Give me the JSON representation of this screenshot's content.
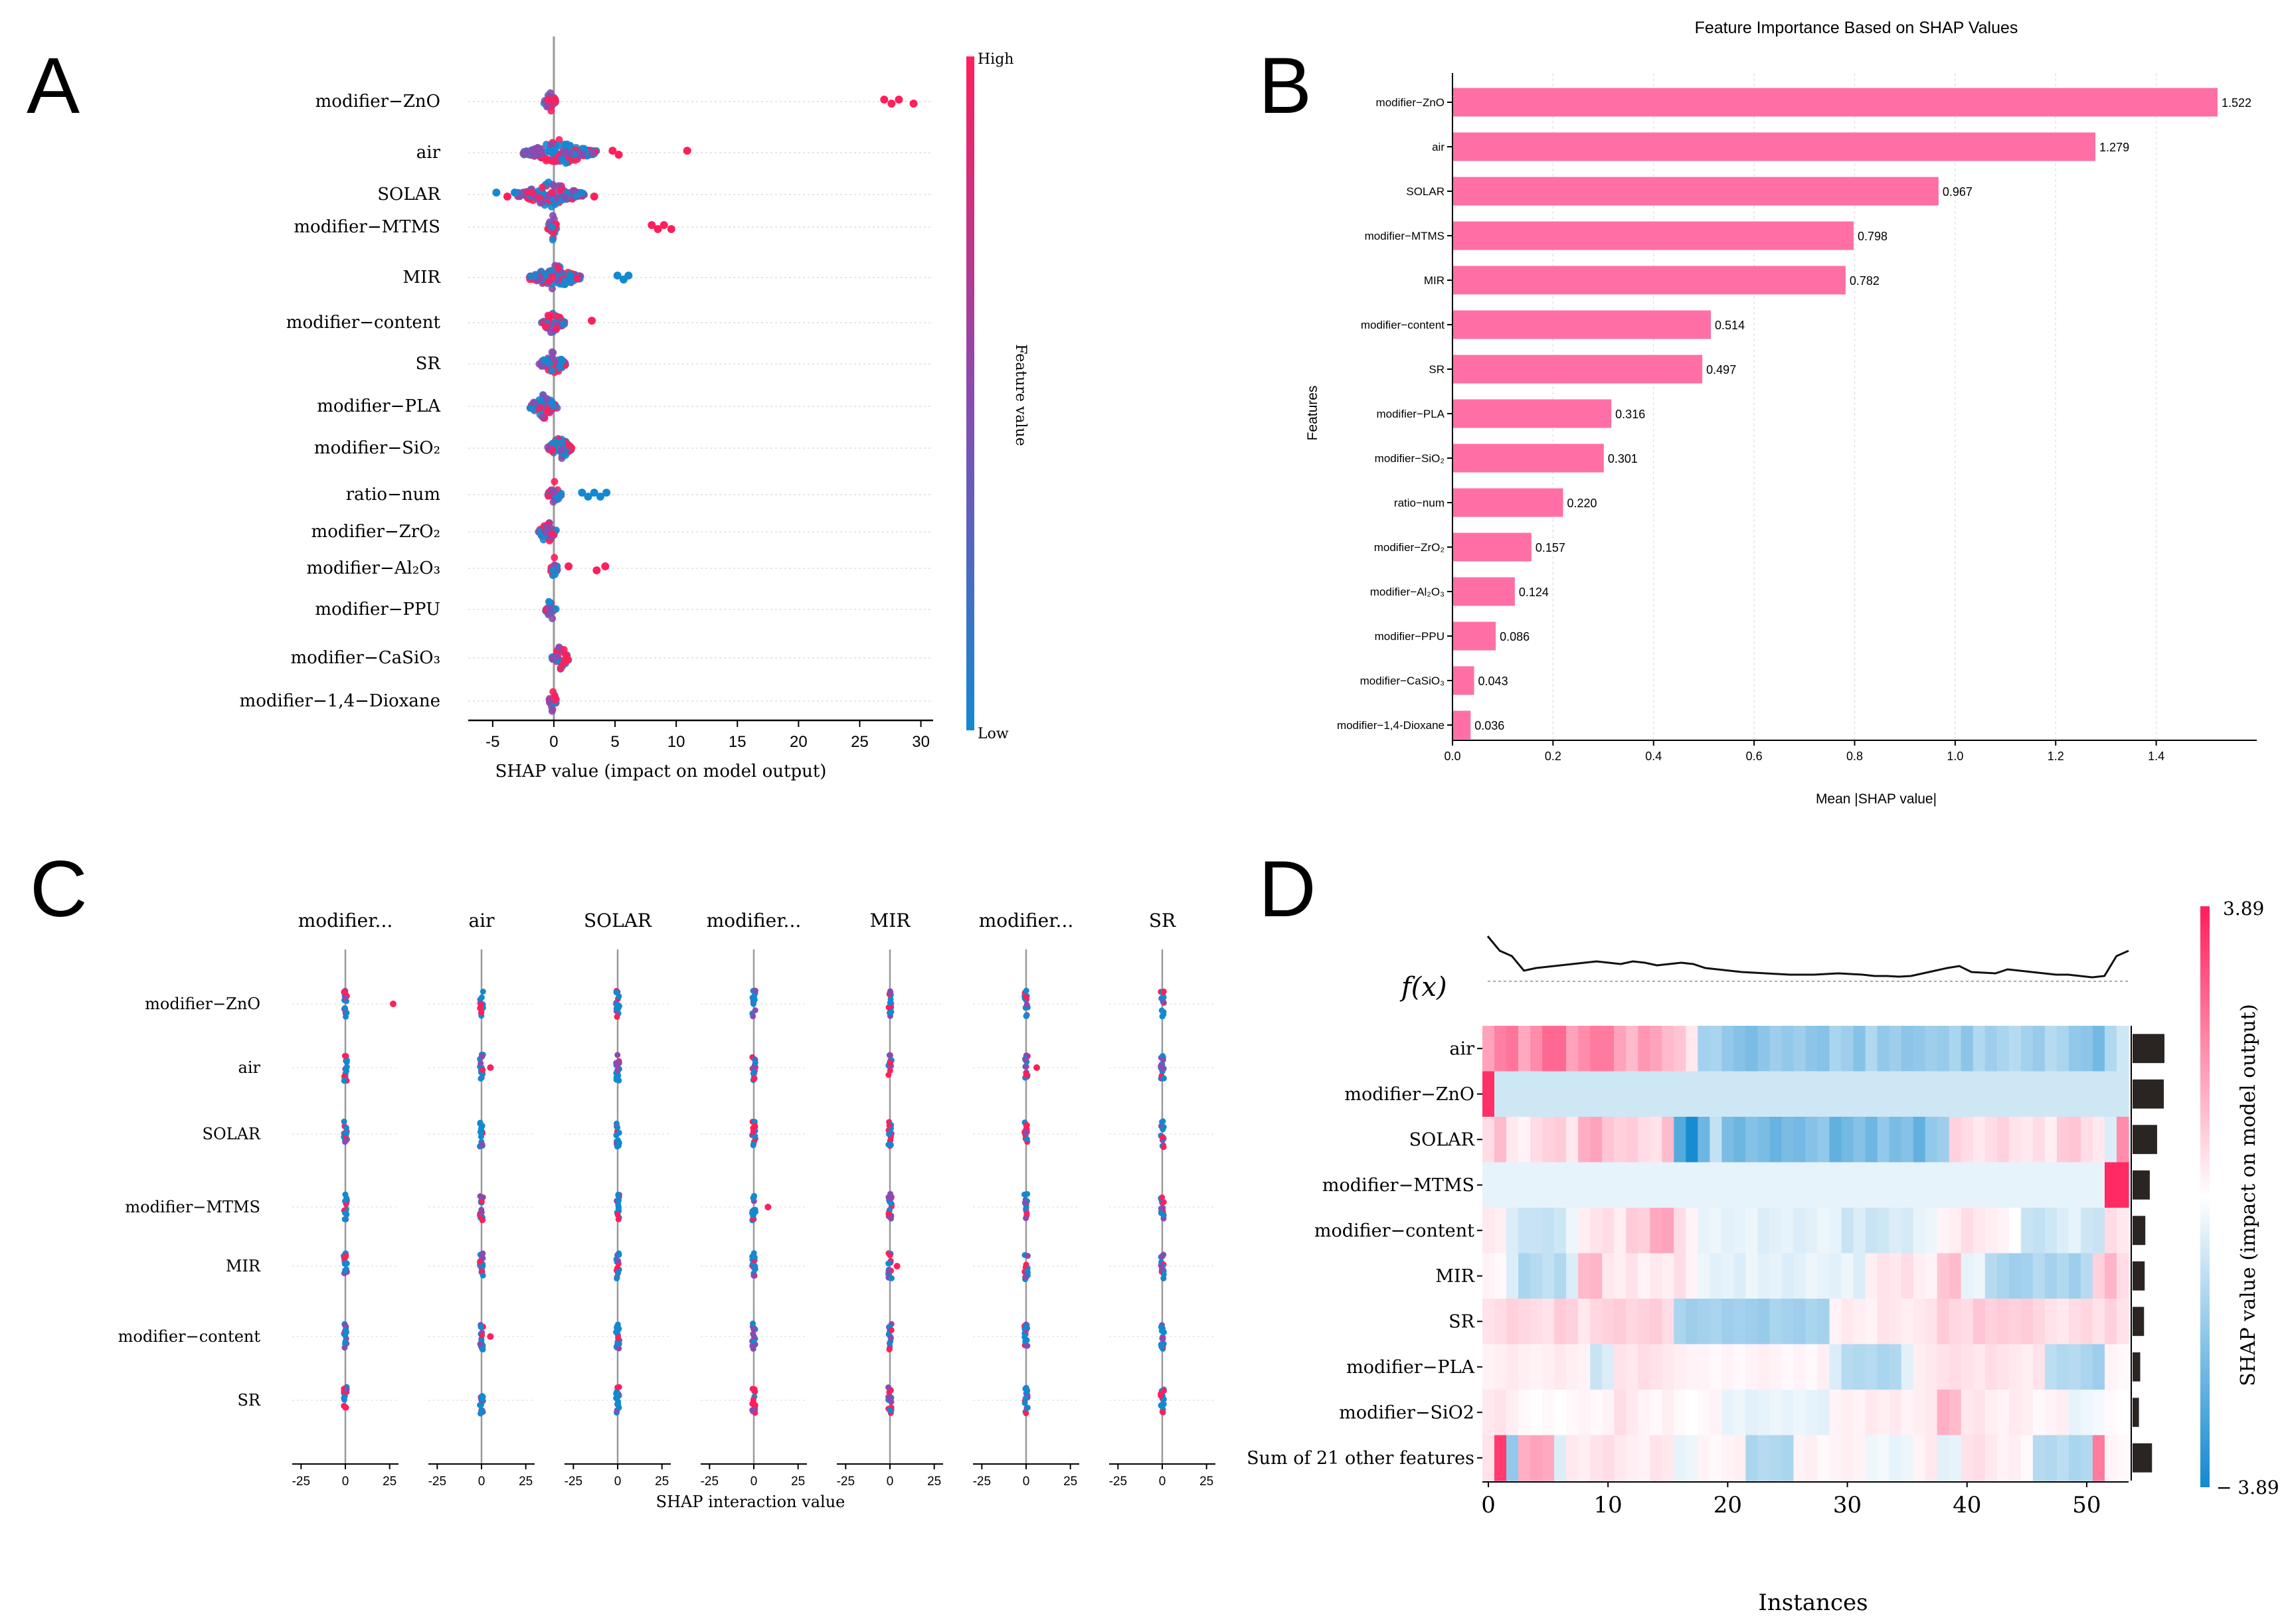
{
  "panel_labels": [
    "A",
    "B",
    "C",
    "D"
  ],
  "colors": {
    "high": "#ff1f5b",
    "low": "#1389d0",
    "mid": "#8a4bb0",
    "bar": "#ff6fa6",
    "dark": "#2a2522"
  },
  "chart_data": [
    {
      "panel": "A",
      "type": "scatter",
      "subtype": "shap-beeswarm",
      "xlabel": "SHAP value (impact on model output)",
      "xlim": [
        -7,
        31
      ],
      "xticks": [
        -5,
        0,
        5,
        10,
        15,
        20,
        25,
        30
      ],
      "features": [
        "modifier−ZnO",
        "air",
        "SOLAR",
        "modifier−MTMS",
        "MIR",
        "modifier−content",
        "SR",
        "modifier−PLA",
        "modifier−SiO₂",
        "ratio−num",
        "modifier−ZrO₂",
        "modifier−Al₂O₃",
        "modifier−PPU",
        "modifier−CaSiO₃",
        "modifier−1,4−Dioxane"
      ],
      "ranges": [
        [
          -0.8,
          0.2
        ],
        [
          -2.5,
          3.5
        ],
        [
          -3,
          2.5
        ],
        [
          -0.5,
          0.3
        ],
        [
          -2,
          2.2
        ],
        [
          -1,
          0.9
        ],
        [
          -1.2,
          1
        ],
        [
          -2,
          0.3
        ],
        [
          -0.5,
          1.5
        ],
        [
          -0.5,
          0.6
        ],
        [
          -1.3,
          0.2
        ],
        [
          -0.3,
          0.3
        ],
        [
          -0.7,
          0.2
        ],
        [
          -0.2,
          1.3
        ],
        [
          -0.4,
          0.2
        ]
      ],
      "outliers": [
        {
          "feature": 0,
          "x": [
            27,
            27.6,
            28.2,
            29.4
          ],
          "color": "high"
        },
        {
          "feature": 1,
          "x": [
            4.8,
            5.3,
            10.9
          ],
          "color": "high"
        },
        {
          "feature": 2,
          "x": [
            -4.7,
            -3.8,
            -3.2,
            3.3
          ],
          "color": "mixed"
        },
        {
          "feature": 3,
          "x": [
            8.0,
            8.5,
            9.0,
            9.6
          ],
          "color": "high"
        },
        {
          "feature": 4,
          "x": [
            5.2,
            5.7,
            6.1
          ],
          "color": "low"
        },
        {
          "feature": 5,
          "x": [
            3.1
          ],
          "color": "high"
        },
        {
          "feature": 9,
          "x": [
            2.3,
            2.8,
            3.3,
            3.8,
            4.3
          ],
          "color": "low"
        },
        {
          "feature": 11,
          "x": [
            1.2,
            3.5,
            4.2
          ],
          "color": "high"
        }
      ],
      "colorbar": {
        "label": "Feature value",
        "high": "High",
        "low": "Low"
      }
    },
    {
      "panel": "B",
      "type": "bar",
      "orientation": "horizontal",
      "title": "Feature Importance Based on SHAP Values",
      "xlabel": "Mean |SHAP value|",
      "ylabel": "Features",
      "xlim": [
        0,
        1.6
      ],
      "xticks": [
        0.0,
        0.2,
        0.4,
        0.6,
        0.8,
        1.0,
        1.2,
        1.4
      ],
      "tick_labels": [
        "0.0",
        "0.2",
        "0.4",
        "0.6",
        "0.8",
        "1.0",
        "1.2",
        "1.4"
      ],
      "categories": [
        "modifier−ZnO",
        "air",
        "SOLAR",
        "modifier−MTMS",
        "MIR",
        "modifier−content",
        "SR",
        "modifier−PLA",
        "modifier−SiO₂",
        "ratio−num",
        "modifier−ZrO₂",
        "modifier−Al₂O₃",
        "modifier−PPU",
        "modifier−CaSiO₃",
        "modifier−1,4-Dioxane"
      ],
      "values": [
        1.522,
        1.279,
        0.967,
        0.798,
        0.782,
        0.514,
        0.497,
        0.316,
        0.301,
        0.22,
        0.157,
        0.124,
        0.086,
        0.043,
        0.036
      ],
      "value_labels": [
        "1.522",
        "1.279",
        "0.967",
        "0.798",
        "0.782",
        "0.514",
        "0.497",
        "0.316",
        "0.301",
        "0.220",
        "0.157",
        "0.124",
        "0.086",
        "0.043",
        "0.036"
      ]
    },
    {
      "panel": "C",
      "type": "scatter",
      "subtype": "shap-interaction",
      "xlabel": "SHAP interaction value",
      "xlim": [
        -30,
        30
      ],
      "xticks": [
        -25,
        0,
        25
      ],
      "columns": [
        "modifier...",
        "air",
        "SOLAR",
        "modifier...",
        "MIR",
        "modifier...",
        "SR"
      ],
      "rows": [
        "modifier−ZnO",
        "air",
        "SOLAR",
        "modifier−MTMS",
        "MIR",
        "modifier−content",
        "SR"
      ],
      "outliers": [
        {
          "col": 0,
          "row": 0,
          "x": 27
        },
        {
          "col": 1,
          "row": 1,
          "x": 5
        },
        {
          "col": 1,
          "row": 5,
          "x": 5
        },
        {
          "col": 3,
          "row": 3,
          "x": 8
        },
        {
          "col": 4,
          "row": 4,
          "x": 4
        },
        {
          "col": 5,
          "row": 1,
          "x": 6
        }
      ]
    },
    {
      "panel": "D",
      "type": "heatmap",
      "subtype": "shap-heatmap",
      "xlabel": "Instances",
      "fx_label": "f(x)",
      "xlim": [
        0,
        54
      ],
      "xticks": [
        0,
        10,
        20,
        30,
        40,
        50
      ],
      "rows": [
        "air",
        "modifier−ZnO",
        "SOLAR",
        "modifier−MTMS",
        "modifier−content",
        "MIR",
        "SR",
        "modifier−PLA",
        "modifier−SiO2",
        "Sum of 21 other features"
      ],
      "row_importance": [
        1.0,
        0.98,
        0.77,
        0.54,
        0.4,
        0.38,
        0.36,
        0.24,
        0.2,
        0.61
      ],
      "colorbar": {
        "max": 3.89,
        "min": -3.89,
        "max_label": "3.89",
        "min_label": "− 3.89",
        "label": "SHAP value (impact on model output)"
      },
      "fx": [
        0.0,
        -0.22,
        -0.3,
        -0.52,
        -0.48,
        -0.46,
        -0.44,
        -0.42,
        -0.4,
        -0.38,
        -0.4,
        -0.42,
        -0.38,
        -0.4,
        -0.44,
        -0.42,
        -0.4,
        -0.42,
        -0.48,
        -0.5,
        -0.52,
        -0.54,
        -0.55,
        -0.56,
        -0.57,
        -0.58,
        -0.58,
        -0.58,
        -0.57,
        -0.56,
        -0.57,
        -0.58,
        -0.6,
        -0.6,
        -0.61,
        -0.6,
        -0.56,
        -0.52,
        -0.48,
        -0.45,
        -0.54,
        -0.55,
        -0.56,
        -0.5,
        -0.52,
        -0.54,
        -0.56,
        -0.58,
        -0.58,
        -0.6,
        -0.62,
        -0.6,
        -0.3,
        -0.22
      ],
      "values": [
        [
          1.6,
          2.2,
          2.4,
          1.5,
          2.0,
          2.6,
          2.6,
          1.6,
          2.0,
          2.3,
          2.3,
          1.6,
          1.2,
          1.8,
          1.6,
          1.2,
          1.0,
          0.4,
          -1.5,
          -1.4,
          -1.8,
          -2.0,
          -2.2,
          -1.9,
          -1.6,
          -1.8,
          -1.6,
          -1.9,
          -2.0,
          -1.4,
          -1.6,
          -2.0,
          -1.3,
          -1.8,
          -1.6,
          -1.9,
          -1.8,
          -1.6,
          -1.7,
          -1.4,
          -1.9,
          -1.3,
          -1.6,
          -1.4,
          -1.2,
          -1.5,
          -1.7,
          -1.2,
          -1.4,
          -1.8,
          -1.9,
          -2.3,
          -1.3,
          -0.8
        ],
        [
          3.6,
          -0.8,
          -0.8,
          -0.8,
          -0.8,
          -0.8,
          -0.8,
          -0.8,
          -0.8,
          -0.8,
          -0.8,
          -0.8,
          -0.8,
          -0.8,
          -0.8,
          -0.8,
          -0.8,
          -0.8,
          -0.8,
          -0.8,
          -0.8,
          -0.8,
          -0.8,
          -0.8,
          -0.8,
          -0.8,
          -0.8,
          -0.8,
          -0.8,
          -0.8,
          -0.8,
          -0.8,
          -0.8,
          -0.8,
          -0.8,
          -0.8,
          -0.8,
          -0.8,
          -0.8,
          -0.8,
          -0.8,
          -0.8,
          -0.8,
          -0.8,
          -0.8,
          -0.8,
          -0.8,
          -0.8,
          -0.8,
          -0.8,
          -0.8,
          -0.8,
          -0.8,
          -0.8
        ],
        [
          0.6,
          1.2,
          0.4,
          0.2,
          0.6,
          0.8,
          0.9,
          0.4,
          1.4,
          1.6,
          1.0,
          0.8,
          0.9,
          0.6,
          0.5,
          1.2,
          -2.8,
          -3.8,
          -2.4,
          -1.0,
          -2.2,
          -2.4,
          -2.0,
          -2.2,
          -2.5,
          -2.2,
          -2.3,
          -2.0,
          -1.8,
          -2.6,
          -2.3,
          -2.0,
          -2.4,
          -1.8,
          -2.2,
          -2.0,
          -2.6,
          -1.8,
          -1.6,
          0.8,
          0.6,
          0.4,
          0.6,
          0.8,
          0.5,
          0.4,
          0.6,
          0.3,
          0.9,
          1.0,
          0.6,
          0.4,
          -0.6,
          2.0
        ],
        [
          -0.4,
          -0.4,
          -0.4,
          -0.4,
          -0.4,
          -0.4,
          -0.4,
          -0.4,
          -0.4,
          -0.4,
          -0.4,
          -0.4,
          -0.4,
          -0.4,
          -0.4,
          -0.4,
          -0.4,
          -0.4,
          -0.4,
          -0.4,
          -0.4,
          -0.4,
          -0.4,
          -0.4,
          -0.4,
          -0.4,
          -0.4,
          -0.4,
          -0.4,
          -0.4,
          -0.4,
          -0.4,
          -0.4,
          -0.4,
          -0.4,
          -0.4,
          -0.4,
          -0.4,
          -0.4,
          -0.4,
          -0.4,
          -0.4,
          -0.4,
          -0.4,
          -0.4,
          -0.4,
          -0.4,
          -0.4,
          -0.4,
          -0.4,
          -0.4,
          -0.4,
          3.7,
          3.7
        ],
        [
          0.4,
          0.3,
          -0.6,
          -0.9,
          -0.9,
          -1.0,
          -0.8,
          -0.3,
          0.3,
          0.5,
          0.6,
          0.3,
          0.9,
          0.8,
          1.5,
          1.6,
          0.6,
          0.2,
          -0.4,
          -0.3,
          -0.5,
          -0.4,
          -0.3,
          -0.6,
          -0.5,
          -0.4,
          -0.6,
          -0.5,
          -0.3,
          -0.4,
          -0.9,
          -0.6,
          -0.9,
          -0.8,
          -0.6,
          -0.7,
          -0.4,
          -0.3,
          0.2,
          0.3,
          0.6,
          0.4,
          0.3,
          0.2,
          0.0,
          -0.9,
          -1.0,
          -0.8,
          -0.6,
          -0.4,
          -0.8,
          -0.9,
          0.6,
          0.4
        ],
        [
          0.2,
          0.1,
          -0.6,
          -1.4,
          -1.2,
          -1.0,
          -1.3,
          -0.6,
          1.2,
          1.3,
          0.4,
          0.3,
          0.5,
          0.2,
          0.4,
          0.3,
          0.6,
          0.2,
          -0.3,
          -0.5,
          -0.4,
          -0.6,
          -0.3,
          -0.5,
          -0.4,
          -0.6,
          -0.5,
          -0.3,
          -0.4,
          -0.5,
          -0.3,
          -0.6,
          0.3,
          0.5,
          0.4,
          0.6,
          0.3,
          0.2,
          1.0,
          1.2,
          -0.4,
          -0.3,
          -1.2,
          -1.4,
          -1.6,
          -1.5,
          -1.2,
          -1.5,
          -1.3,
          -1.6,
          -1.2,
          0.8,
          1.3,
          0.6
        ],
        [
          0.5,
          0.6,
          0.8,
          0.7,
          0.6,
          0.5,
          0.9,
          0.8,
          0.4,
          0.7,
          0.8,
          0.9,
          0.7,
          0.8,
          0.9,
          0.6,
          -1.4,
          -1.6,
          -1.5,
          -1.4,
          -1.6,
          -1.5,
          -1.6,
          -1.7,
          -1.4,
          -1.5,
          -1.6,
          -1.4,
          -1.5,
          0.2,
          0.4,
          0.3,
          0.2,
          0.5,
          0.4,
          0.3,
          0.4,
          0.5,
          0.9,
          0.7,
          0.6,
          1.0,
          0.8,
          0.9,
          0.8,
          0.9,
          0.7,
          0.5,
          0.4,
          0.6,
          0.7,
          0.5,
          0.8,
          0.5
        ],
        [
          0.2,
          0.3,
          0.4,
          0.3,
          0.2,
          0.3,
          0.4,
          0.3,
          0.2,
          -0.9,
          -0.6,
          0.5,
          0.4,
          0.6,
          0.5,
          0.4,
          0.3,
          0.2,
          0.2,
          0.1,
          0.2,
          0.1,
          0.2,
          0.3,
          0.2,
          0.1,
          0.2,
          0.1,
          0.3,
          -0.6,
          -1.2,
          -1.3,
          -1.2,
          -1.4,
          -1.3,
          -0.5,
          0.3,
          0.4,
          0.5,
          0.6,
          0.5,
          0.4,
          0.6,
          0.5,
          0.4,
          0.3,
          0.5,
          -1.1,
          -1.3,
          -1.2,
          -1.4,
          -1.6,
          0.2,
          0.1
        ],
        [
          0.4,
          0.5,
          0.3,
          0.1,
          0.0,
          0.1,
          0.0,
          0.1,
          0.2,
          0.1,
          0.2,
          0.6,
          0.4,
          0.2,
          0.1,
          0.3,
          0.1,
          0.0,
          0.1,
          0.2,
          -0.4,
          -0.3,
          -0.5,
          -0.4,
          -0.3,
          -0.4,
          -0.3,
          -0.4,
          -0.5,
          0.2,
          0.3,
          0.2,
          0.4,
          0.3,
          0.4,
          0.2,
          0.3,
          0.4,
          1.4,
          1.2,
          0.4,
          0.5,
          0.3,
          0.2,
          0.4,
          0.3,
          0.1,
          0.2,
          0.3,
          -0.4,
          -0.3,
          -0.2,
          0.1,
          0.0
        ],
        [
          0.5,
          3.4,
          -1.8,
          1.4,
          1.6,
          1.5,
          -0.6,
          0.4,
          0.3,
          0.5,
          0.6,
          0.4,
          0.3,
          0.2,
          0.5,
          0.4,
          -0.4,
          -0.3,
          0.2,
          0.1,
          0.2,
          0.3,
          -1.4,
          -1.2,
          -1.3,
          -1.4,
          0.2,
          0.3,
          0.1,
          0.2,
          0.3,
          0.2,
          -0.3,
          -0.2,
          -0.4,
          -0.3,
          0.2,
          0.4,
          -0.5,
          -0.4,
          0.5,
          0.6,
          0.4,
          0.2,
          0.3,
          0.1,
          -1.2,
          -1.3,
          -1.1,
          -1.4,
          -1.3,
          2.3,
          0.2,
          0.1
        ]
      ]
    }
  ]
}
